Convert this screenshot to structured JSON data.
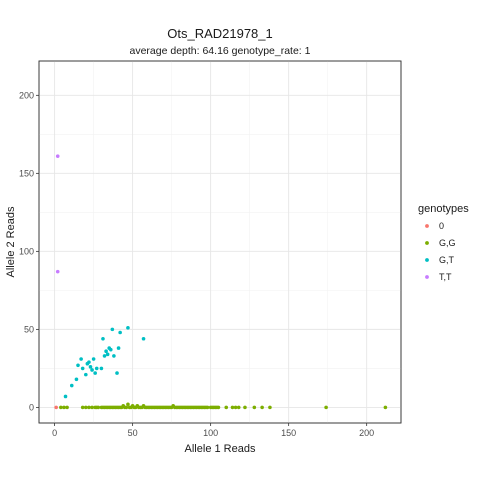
{
  "chart_data": {
    "type": "scatter",
    "title": "Ots_RAD21978_1",
    "subtitle": "average depth:  64.16  genotype_rate:  1",
    "xlabel": "Allele 1 Reads",
    "ylabel": "Allele 2 Reads",
    "xlim": [
      -10,
      222
    ],
    "ylim": [
      -10,
      222
    ],
    "x_ticks": [
      0,
      50,
      100,
      150,
      200
    ],
    "y_ticks": [
      0,
      50,
      100,
      150,
      200
    ],
    "grid": true,
    "legend": {
      "title": "genotypes",
      "placement": "right"
    },
    "series": [
      {
        "name": "0",
        "color": "#F8766D",
        "points": [
          [
            1,
            0
          ]
        ]
      },
      {
        "name": "G,G",
        "color": "#7CAE00",
        "points": [
          [
            4,
            0
          ],
          [
            6,
            0
          ],
          [
            8,
            0
          ],
          [
            18,
            0
          ],
          [
            20,
            0
          ],
          [
            22,
            0
          ],
          [
            24,
            0
          ],
          [
            26,
            0
          ],
          [
            27,
            0
          ],
          [
            28,
            0
          ],
          [
            30,
            0
          ],
          [
            31,
            0
          ],
          [
            32,
            0
          ],
          [
            33,
            0
          ],
          [
            34,
            0
          ],
          [
            35,
            0
          ],
          [
            36,
            0
          ],
          [
            37,
            0
          ],
          [
            38,
            0
          ],
          [
            39,
            0
          ],
          [
            40,
            0
          ],
          [
            41,
            0
          ],
          [
            42,
            0
          ],
          [
            43,
            0
          ],
          [
            44,
            1
          ],
          [
            45,
            0
          ],
          [
            46,
            0
          ],
          [
            47,
            2
          ],
          [
            48,
            0
          ],
          [
            49,
            0
          ],
          [
            50,
            1
          ],
          [
            51,
            0
          ],
          [
            52,
            0
          ],
          [
            53,
            1
          ],
          [
            54,
            0
          ],
          [
            55,
            0
          ],
          [
            56,
            0
          ],
          [
            57,
            1
          ],
          [
            58,
            0
          ],
          [
            59,
            0
          ],
          [
            60,
            0
          ],
          [
            61,
            0
          ],
          [
            62,
            0
          ],
          [
            63,
            0
          ],
          [
            64,
            0
          ],
          [
            65,
            0
          ],
          [
            66,
            0
          ],
          [
            67,
            0
          ],
          [
            68,
            0
          ],
          [
            69,
            0
          ],
          [
            70,
            0
          ],
          [
            71,
            0
          ],
          [
            72,
            0
          ],
          [
            73,
            0
          ],
          [
            74,
            0
          ],
          [
            75,
            0
          ],
          [
            76,
            1
          ],
          [
            77,
            0
          ],
          [
            78,
            0
          ],
          [
            79,
            0
          ],
          [
            80,
            0
          ],
          [
            81,
            0
          ],
          [
            82,
            0
          ],
          [
            83,
            0
          ],
          [
            84,
            0
          ],
          [
            85,
            0
          ],
          [
            86,
            0
          ],
          [
            87,
            0
          ],
          [
            88,
            0
          ],
          [
            89,
            0
          ],
          [
            90,
            0
          ],
          [
            91,
            0
          ],
          [
            92,
            0
          ],
          [
            93,
            0
          ],
          [
            94,
            0
          ],
          [
            95,
            0
          ],
          [
            96,
            0
          ],
          [
            97,
            0
          ],
          [
            98,
            0
          ],
          [
            100,
            0
          ],
          [
            101,
            0
          ],
          [
            102,
            0
          ],
          [
            103,
            0
          ],
          [
            104,
            0
          ],
          [
            105,
            0
          ],
          [
            110,
            0
          ],
          [
            114,
            0
          ],
          [
            116,
            0
          ],
          [
            118,
            0
          ],
          [
            122,
            0
          ],
          [
            128,
            0
          ],
          [
            133,
            0
          ],
          [
            138,
            0
          ],
          [
            174,
            0
          ],
          [
            212,
            0
          ]
        ]
      },
      {
        "name": "G,T",
        "color": "#00BFC4",
        "points": [
          [
            7,
            7
          ],
          [
            11,
            14
          ],
          [
            14,
            18
          ],
          [
            15,
            27
          ],
          [
            17,
            31
          ],
          [
            18,
            25
          ],
          [
            20,
            21
          ],
          [
            21,
            28
          ],
          [
            22,
            29
          ],
          [
            23,
            26
          ],
          [
            24,
            24
          ],
          [
            25,
            31
          ],
          [
            26,
            22
          ],
          [
            27,
            25
          ],
          [
            30,
            25
          ],
          [
            31,
            44
          ],
          [
            32,
            33
          ],
          [
            33,
            36
          ],
          [
            34,
            34
          ],
          [
            35,
            38
          ],
          [
            36,
            37
          ],
          [
            37,
            50
          ],
          [
            38,
            33
          ],
          [
            40,
            22
          ],
          [
            41,
            38
          ],
          [
            42,
            48
          ],
          [
            47,
            51
          ],
          [
            57,
            44
          ]
        ]
      },
      {
        "name": "T,T",
        "color": "#C77CFF",
        "points": [
          [
            2,
            161
          ],
          [
            2,
            87
          ]
        ]
      }
    ]
  }
}
